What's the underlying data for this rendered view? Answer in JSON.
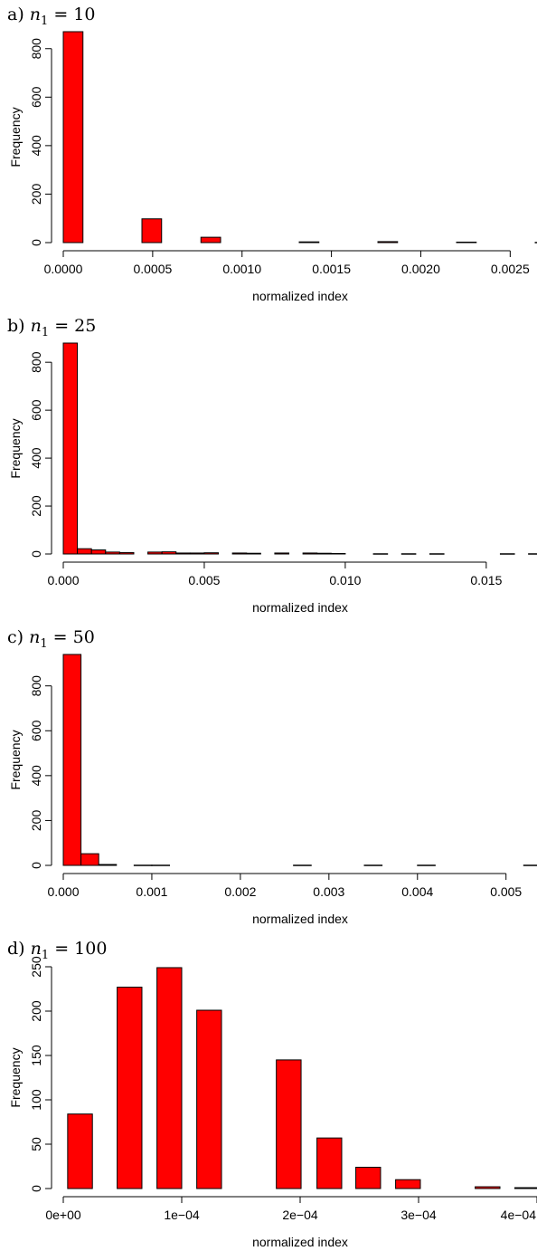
{
  "colors": {
    "bar_fill": "#ff0000",
    "bar_stroke": "#000000"
  },
  "chart_data": [
    {
      "type": "bar",
      "title_prefix": "a)",
      "title_var": "n",
      "title_sub": "1",
      "title_value": "= 10",
      "xlabel": "normalized index",
      "ylabel": "Frequency",
      "xlim": [
        0,
        0.00265
      ],
      "ylim": [
        0,
        870
      ],
      "x_ticks": [
        0,
        0.0005,
        0.001,
        0.0015,
        0.002,
        0.0025
      ],
      "x_tick_labels": [
        "0.0000",
        "0.0005",
        "0.0010",
        "0.0015",
        "0.0020",
        "0.0025"
      ],
      "y_ticks": [
        0,
        200,
        400,
        600,
        800
      ],
      "y_tick_labels": [
        "0",
        "200",
        "400",
        "600",
        "800"
      ],
      "bins": [
        {
          "x0": 0.0,
          "x1": 0.00011,
          "count": 870
        },
        {
          "x0": 0.00044,
          "x1": 0.00055,
          "count": 98
        },
        {
          "x0": 0.00077,
          "x1": 0.00088,
          "count": 22
        },
        {
          "x0": 0.00132,
          "x1": 0.00143,
          "count": 3
        },
        {
          "x0": 0.00176,
          "x1": 0.00187,
          "count": 4
        },
        {
          "x0": 0.0022,
          "x1": 0.00231,
          "count": 2
        },
        {
          "x0": 0.00264,
          "x1": 0.00275,
          "count": 1
        }
      ]
    },
    {
      "type": "bar",
      "title_prefix": "b)",
      "title_var": "n",
      "title_sub": "1",
      "title_value": "= 25",
      "xlabel": "normalized index",
      "ylabel": "Frequency",
      "xlim": [
        0,
        0.0168
      ],
      "ylim": [
        0,
        880
      ],
      "x_ticks": [
        0,
        0.005,
        0.01,
        0.015
      ],
      "x_tick_labels": [
        "0.000",
        "0.005",
        "0.010",
        "0.015"
      ],
      "y_ticks": [
        0,
        200,
        400,
        600,
        800
      ],
      "y_tick_labels": [
        "0",
        "200",
        "400",
        "600",
        "800"
      ],
      "bins": [
        {
          "x0": 0.0,
          "x1": 0.0005,
          "count": 880
        },
        {
          "x0": 0.0005,
          "x1": 0.001,
          "count": 22
        },
        {
          "x0": 0.001,
          "x1": 0.0015,
          "count": 17
        },
        {
          "x0": 0.0015,
          "x1": 0.002,
          "count": 8
        },
        {
          "x0": 0.002,
          "x1": 0.0025,
          "count": 6
        },
        {
          "x0": 0.003,
          "x1": 0.0035,
          "count": 8
        },
        {
          "x0": 0.0035,
          "x1": 0.004,
          "count": 9
        },
        {
          "x0": 0.004,
          "x1": 0.0045,
          "count": 4
        },
        {
          "x0": 0.0045,
          "x1": 0.005,
          "count": 4
        },
        {
          "x0": 0.005,
          "x1": 0.0055,
          "count": 5
        },
        {
          "x0": 0.006,
          "x1": 0.0065,
          "count": 4
        },
        {
          "x0": 0.0065,
          "x1": 0.007,
          "count": 3
        },
        {
          "x0": 0.0075,
          "x1": 0.008,
          "count": 4
        },
        {
          "x0": 0.0085,
          "x1": 0.009,
          "count": 4
        },
        {
          "x0": 0.009,
          "x1": 0.0095,
          "count": 3
        },
        {
          "x0": 0.0095,
          "x1": 0.01,
          "count": 2
        },
        {
          "x0": 0.011,
          "x1": 0.0115,
          "count": 1
        },
        {
          "x0": 0.012,
          "x1": 0.0125,
          "count": 1
        },
        {
          "x0": 0.013,
          "x1": 0.0135,
          "count": 1
        },
        {
          "x0": 0.0155,
          "x1": 0.016,
          "count": 1
        },
        {
          "x0": 0.0165,
          "x1": 0.017,
          "count": 1
        }
      ]
    },
    {
      "type": "bar",
      "title_prefix": "c)",
      "title_var": "n",
      "title_sub": "1",
      "title_value": "= 50",
      "xlabel": "normalized index",
      "ylabel": "Frequency",
      "xlim": [
        0,
        0.00535
      ],
      "ylim": [
        0,
        940
      ],
      "x_ticks": [
        0,
        0.001,
        0.002,
        0.003,
        0.004,
        0.005
      ],
      "x_tick_labels": [
        "0.000",
        "0.001",
        "0.002",
        "0.003",
        "0.004",
        "0.005"
      ],
      "y_ticks": [
        0,
        200,
        400,
        600,
        800
      ],
      "y_tick_labels": [
        "0",
        "200",
        "400",
        "600",
        "800"
      ],
      "bins": [
        {
          "x0": 0.0,
          "x1": 0.0002,
          "count": 940
        },
        {
          "x0": 0.0002,
          "x1": 0.0004,
          "count": 52
        },
        {
          "x0": 0.0004,
          "x1": 0.0006,
          "count": 4
        },
        {
          "x0": 0.0008,
          "x1": 0.001,
          "count": 1
        },
        {
          "x0": 0.001,
          "x1": 0.0012,
          "count": 1
        },
        {
          "x0": 0.0026,
          "x1": 0.0028,
          "count": 1
        },
        {
          "x0": 0.0034,
          "x1": 0.0036,
          "count": 1
        },
        {
          "x0": 0.004,
          "x1": 0.0042,
          "count": 1
        },
        {
          "x0": 0.0052,
          "x1": 0.0054,
          "count": 1
        }
      ]
    },
    {
      "type": "bar",
      "title_prefix": "d)",
      "title_var": "n",
      "title_sub": "1",
      "title_value": "= 100",
      "xlabel": "normalized index",
      "ylabel": "Frequency",
      "xlim": [
        0,
        0.0004
      ],
      "ylim": [
        0,
        250
      ],
      "x_ticks": [
        0,
        0.0001,
        0.0002,
        0.0003,
        0.0004
      ],
      "x_tick_labels": [
        "0e+00",
        "1e−04",
        "2e−04",
        "3e−04",
        "4e−04"
      ],
      "y_ticks": [
        0,
        50,
        100,
        150,
        200,
        250
      ],
      "y_tick_labels": [
        "0",
        "50",
        "100",
        "150",
        "200",
        "250"
      ],
      "bins": [
        {
          "x0": 3.7e-06,
          "x1": 2.46e-05,
          "count": 84
        },
        {
          "x0": 4.55e-05,
          "x1": 6.64e-05,
          "count": 227
        },
        {
          "x0": 7.91e-05,
          "x1": 0.0001,
          "count": 249
        },
        {
          "x0": 0.0001127,
          "x1": 0.0001336,
          "count": 201
        },
        {
          "x0": 0.0001799,
          "x1": 0.0002008,
          "count": 145
        },
        {
          "x0": 0.0002142,
          "x1": 0.0002351,
          "count": 57
        },
        {
          "x0": 0.000247,
          "x1": 0.0002679,
          "count": 24
        },
        {
          "x0": 0.0002806,
          "x1": 0.0003015,
          "count": 10
        },
        {
          "x0": 0.0003478,
          "x1": 0.0003687,
          "count": 2
        },
        {
          "x0": 0.0003813,
          "x1": 0.0004022,
          "count": 1
        }
      ]
    }
  ]
}
